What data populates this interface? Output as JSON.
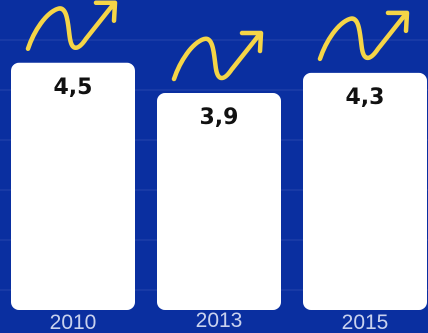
{
  "chart_data": {
    "type": "bar",
    "categories": [
      "2010",
      "2013",
      "2015"
    ],
    "values": [
      4.5,
      3.9,
      4.3
    ],
    "value_labels": [
      "4,5",
      "3,9",
      "4,3"
    ],
    "ylim": [
      0,
      5
    ],
    "grid": true,
    "legend": "none",
    "colors": {
      "background": "#0a2fa0",
      "bar": "#ffffff",
      "gridline": "#2646ad",
      "arrow": "#f5d547",
      "value_text": "#111111",
      "tick_text": "#c9d2ee"
    },
    "decoration": "up-arrow-icon above each bar"
  }
}
